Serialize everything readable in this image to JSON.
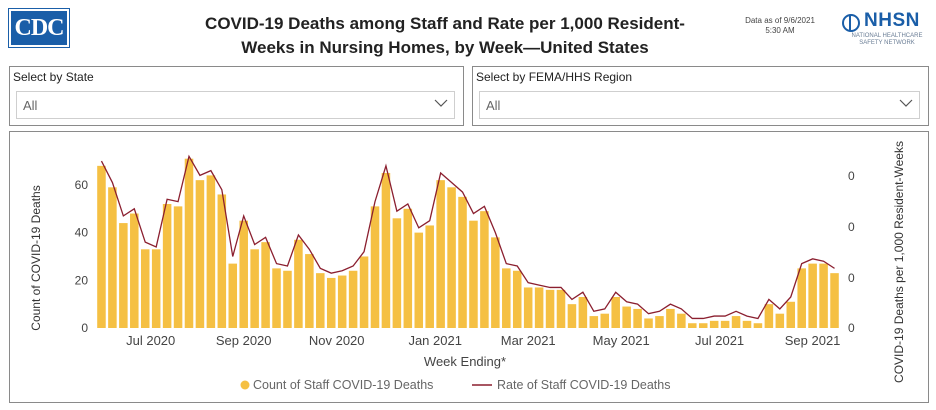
{
  "header": {
    "logo_text": "CDC",
    "title_line1": "COVID-19 Deaths among Staff and Rate per 1,000 Resident-",
    "title_line2": "Weeks in Nursing Homes, by Week—United States",
    "asof_line1": "Data as of 9/6/2021",
    "asof_line2": "5:30 AM",
    "nhsn_logo": "NHSN",
    "nhsn_sub": "National Healthcare Safety Network"
  },
  "filters": {
    "state": {
      "label": "Select by State",
      "value": "All"
    },
    "region": {
      "label": "Select by FEMA/HHS Region",
      "value": "All"
    }
  },
  "chart_data": {
    "type": "bar",
    "xlabel": "Week Ending*",
    "ylabel": "Count of COVID-19 Deaths",
    "y2label": "COVID-19 Deaths per 1,000 Resident-Weeks",
    "ylim": [
      0,
      78
    ],
    "yticks": [
      0,
      20,
      40,
      60
    ],
    "y2ticks": [
      "0",
      "0",
      "0",
      "0"
    ],
    "xticks": [
      "Jul 2020",
      "Sep 2020",
      "Nov 2020",
      "Jan 2021",
      "Mar 2021",
      "May 2021",
      "Jul 2021",
      "Sep 2021"
    ],
    "xtick_week_index": [
      4.5,
      13,
      21.5,
      30.5,
      39,
      47.5,
      56.5,
      65
    ],
    "series": [
      {
        "name": "Count of Staff COVID-19 Deaths",
        "type": "bar",
        "color": "#f5c043",
        "values": [
          68,
          59,
          44,
          48,
          33,
          33,
          52,
          51,
          71,
          62,
          64,
          56,
          27,
          45,
          33,
          36,
          25,
          24,
          37,
          31,
          23,
          21,
          22,
          24,
          30,
          51,
          65,
          46,
          50,
          40,
          43,
          62,
          59,
          55,
          45,
          49,
          38,
          25,
          24,
          17,
          17,
          16,
          16,
          10,
          13,
          5,
          6,
          13,
          9,
          8,
          4,
          5,
          8,
          6,
          2,
          2,
          3,
          3,
          5,
          3,
          2,
          10,
          6,
          11,
          25,
          27,
          27,
          23
        ]
      },
      {
        "name": "Rate of Staff COVID-19 Deaths",
        "type": "line",
        "color": "#8b1f2f",
        "values": [
          70,
          61,
          47,
          50,
          36,
          34,
          54,
          53,
          72,
          64,
          66,
          58,
          30,
          47,
          35,
          38,
          27,
          26,
          39,
          33,
          25,
          23,
          24,
          26,
          32,
          53,
          68,
          49,
          52,
          42,
          45,
          65,
          61,
          57,
          48,
          51,
          40,
          27,
          26,
          19,
          18,
          17,
          17,
          12,
          15,
          7,
          8,
          15,
          11,
          10,
          6,
          7,
          10,
          8,
          4,
          4,
          5,
          5,
          7,
          5,
          4,
          12,
          8,
          13,
          27,
          29,
          28,
          25
        ]
      }
    ],
    "legend": "bottom-center"
  }
}
